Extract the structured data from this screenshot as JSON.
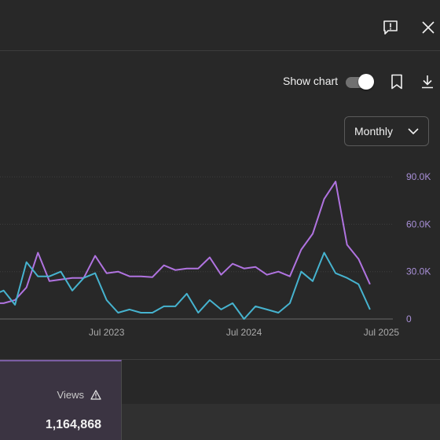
{
  "controls": {
    "show_chart_label": "Show chart",
    "show_chart_on": true,
    "period": {
      "selected": "Monthly"
    }
  },
  "icons": {
    "feedback": "feedback-icon",
    "close": "close-icon",
    "bookmark": "bookmark-icon",
    "download": "download-icon",
    "dropdown": "chevron-down-icon",
    "warning": "warning-icon"
  },
  "colors": {
    "series_purple": "#b073e0",
    "series_teal": "#46b3cf",
    "background": "#282828",
    "selected_metric_bg": "#3b3442"
  },
  "chart_data": {
    "type": "line",
    "x": [
      "2022-09",
      "2022-10",
      "2022-11",
      "2022-12",
      "2023-01",
      "2023-02",
      "2023-03",
      "2023-04",
      "2023-05",
      "2023-06",
      "2023-07",
      "2023-08",
      "2023-09",
      "2023-10",
      "2023-11",
      "2023-12",
      "2024-01",
      "2024-02",
      "2024-03",
      "2024-04",
      "2024-05",
      "2024-06",
      "2024-07",
      "2024-08",
      "2024-09",
      "2024-10",
      "2024-11",
      "2024-12",
      "2025-01",
      "2025-02",
      "2025-03",
      "2025-04",
      "2025-05",
      "2025-06",
      "2025-07",
      "2025-08"
    ],
    "x_ticks": [
      "Jul 2023",
      "Jul 2024",
      "Jul 2025"
    ],
    "y_ticks": [
      "0",
      "30.0K",
      "60.0K",
      "90.0K"
    ],
    "ylim": [
      0,
      90000
    ],
    "series": [
      {
        "values": [
          10000,
          10000,
          12000,
          20000,
          42000,
          24000,
          25000,
          26000,
          26000,
          40000,
          29000,
          30000,
          27000,
          27000,
          26500,
          34000,
          31000,
          32000,
          32000,
          39000,
          28000,
          35000,
          32000,
          33000,
          28000,
          30000,
          27000,
          44000,
          54000,
          76000,
          87000,
          47000,
          38000,
          22000,
          22000,
          22000
        ]
      },
      {
        "values": [
          15000,
          18000,
          9000,
          36000,
          27000,
          27000,
          30000,
          18000,
          26000,
          29000,
          12000,
          4000,
          6000,
          4000,
          4000,
          8000,
          8000,
          16000,
          4000,
          12000,
          6000,
          10000,
          0,
          8000,
          6000,
          4000,
          10000,
          30000,
          24000,
          42000,
          29000,
          26000,
          22000,
          6000,
          6000,
          6000
        ]
      }
    ]
  },
  "metrics": [
    {
      "label": "Views",
      "value": "1,164,868",
      "selected": true
    }
  ]
}
